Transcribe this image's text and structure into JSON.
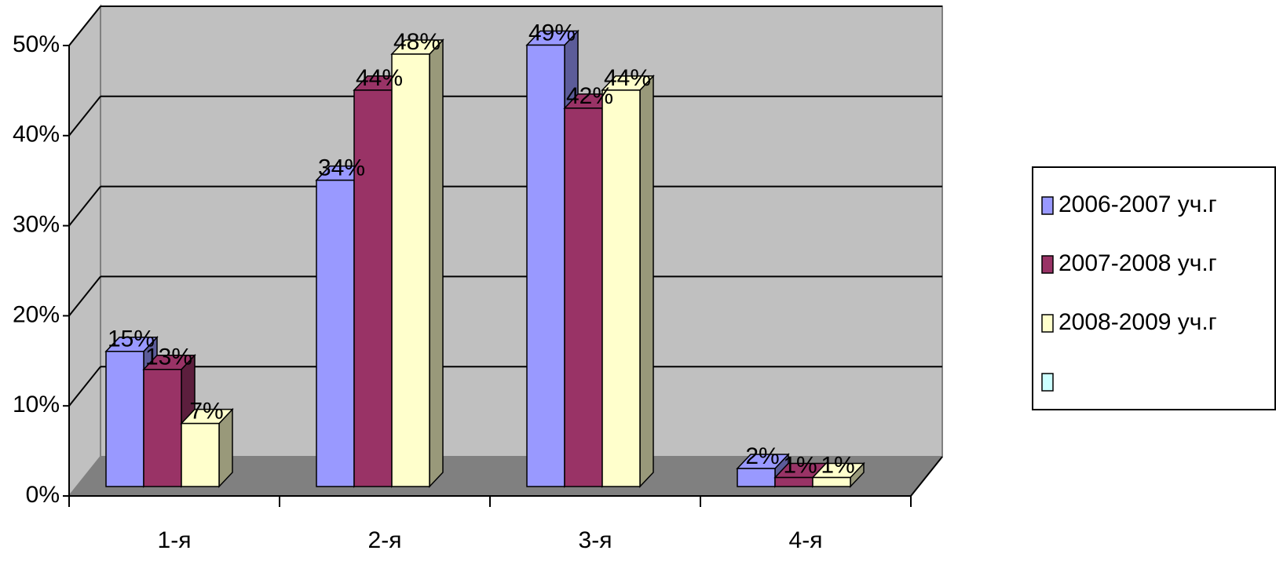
{
  "chart_data": {
    "type": "bar3d",
    "categories": [
      "1-я",
      "2-я",
      "3-я",
      "4-я"
    ],
    "series": [
      {
        "name": "2006-2007 уч.г",
        "color": "#9999ff",
        "values": [
          15,
          34,
          49,
          2
        ],
        "value_labels": [
          "15%",
          "34%",
          "49%",
          "2%"
        ]
      },
      {
        "name": "2007-2008 уч.г",
        "color": "#993366",
        "values": [
          13,
          44,
          42,
          1
        ],
        "value_labels": [
          "13%",
          "44%",
          "42%",
          "1%"
        ]
      },
      {
        "name": "2008-2009 уч.г",
        "color": "#ffffcc",
        "values": [
          7,
          48,
          44,
          1
        ],
        "value_labels": [
          "7%",
          "48%",
          "44%",
          "1%"
        ]
      }
    ],
    "ylim": [
      0,
      50
    ],
    "yticks": [
      {
        "value": 0,
        "label": "0%"
      },
      {
        "value": 10,
        "label": "10%"
      },
      {
        "value": 20,
        "label": "20%"
      },
      {
        "value": 30,
        "label": "30%"
      },
      {
        "value": 40,
        "label": "40%"
      },
      {
        "value": 50,
        "label": "50%"
      }
    ],
    "grid": true,
    "legend": "right"
  }
}
